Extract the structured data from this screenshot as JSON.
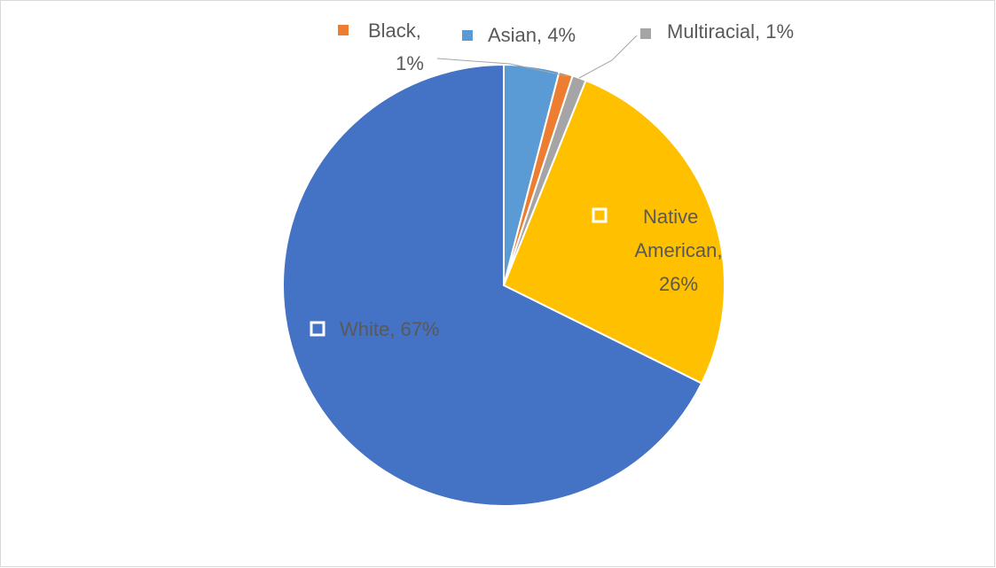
{
  "chart_data": {
    "type": "pie",
    "labels": [
      "Asian, 4%",
      "Black, 1%",
      "Multiracial, 1%",
      "Native American, 26%",
      "White, 67%"
    ],
    "values": [
      4,
      1,
      1,
      26,
      67
    ],
    "colors": [
      "#5b9bd5",
      "#ed7d31",
      "#a5a5a5",
      "#ffc000",
      "#4472c4"
    ]
  }
}
